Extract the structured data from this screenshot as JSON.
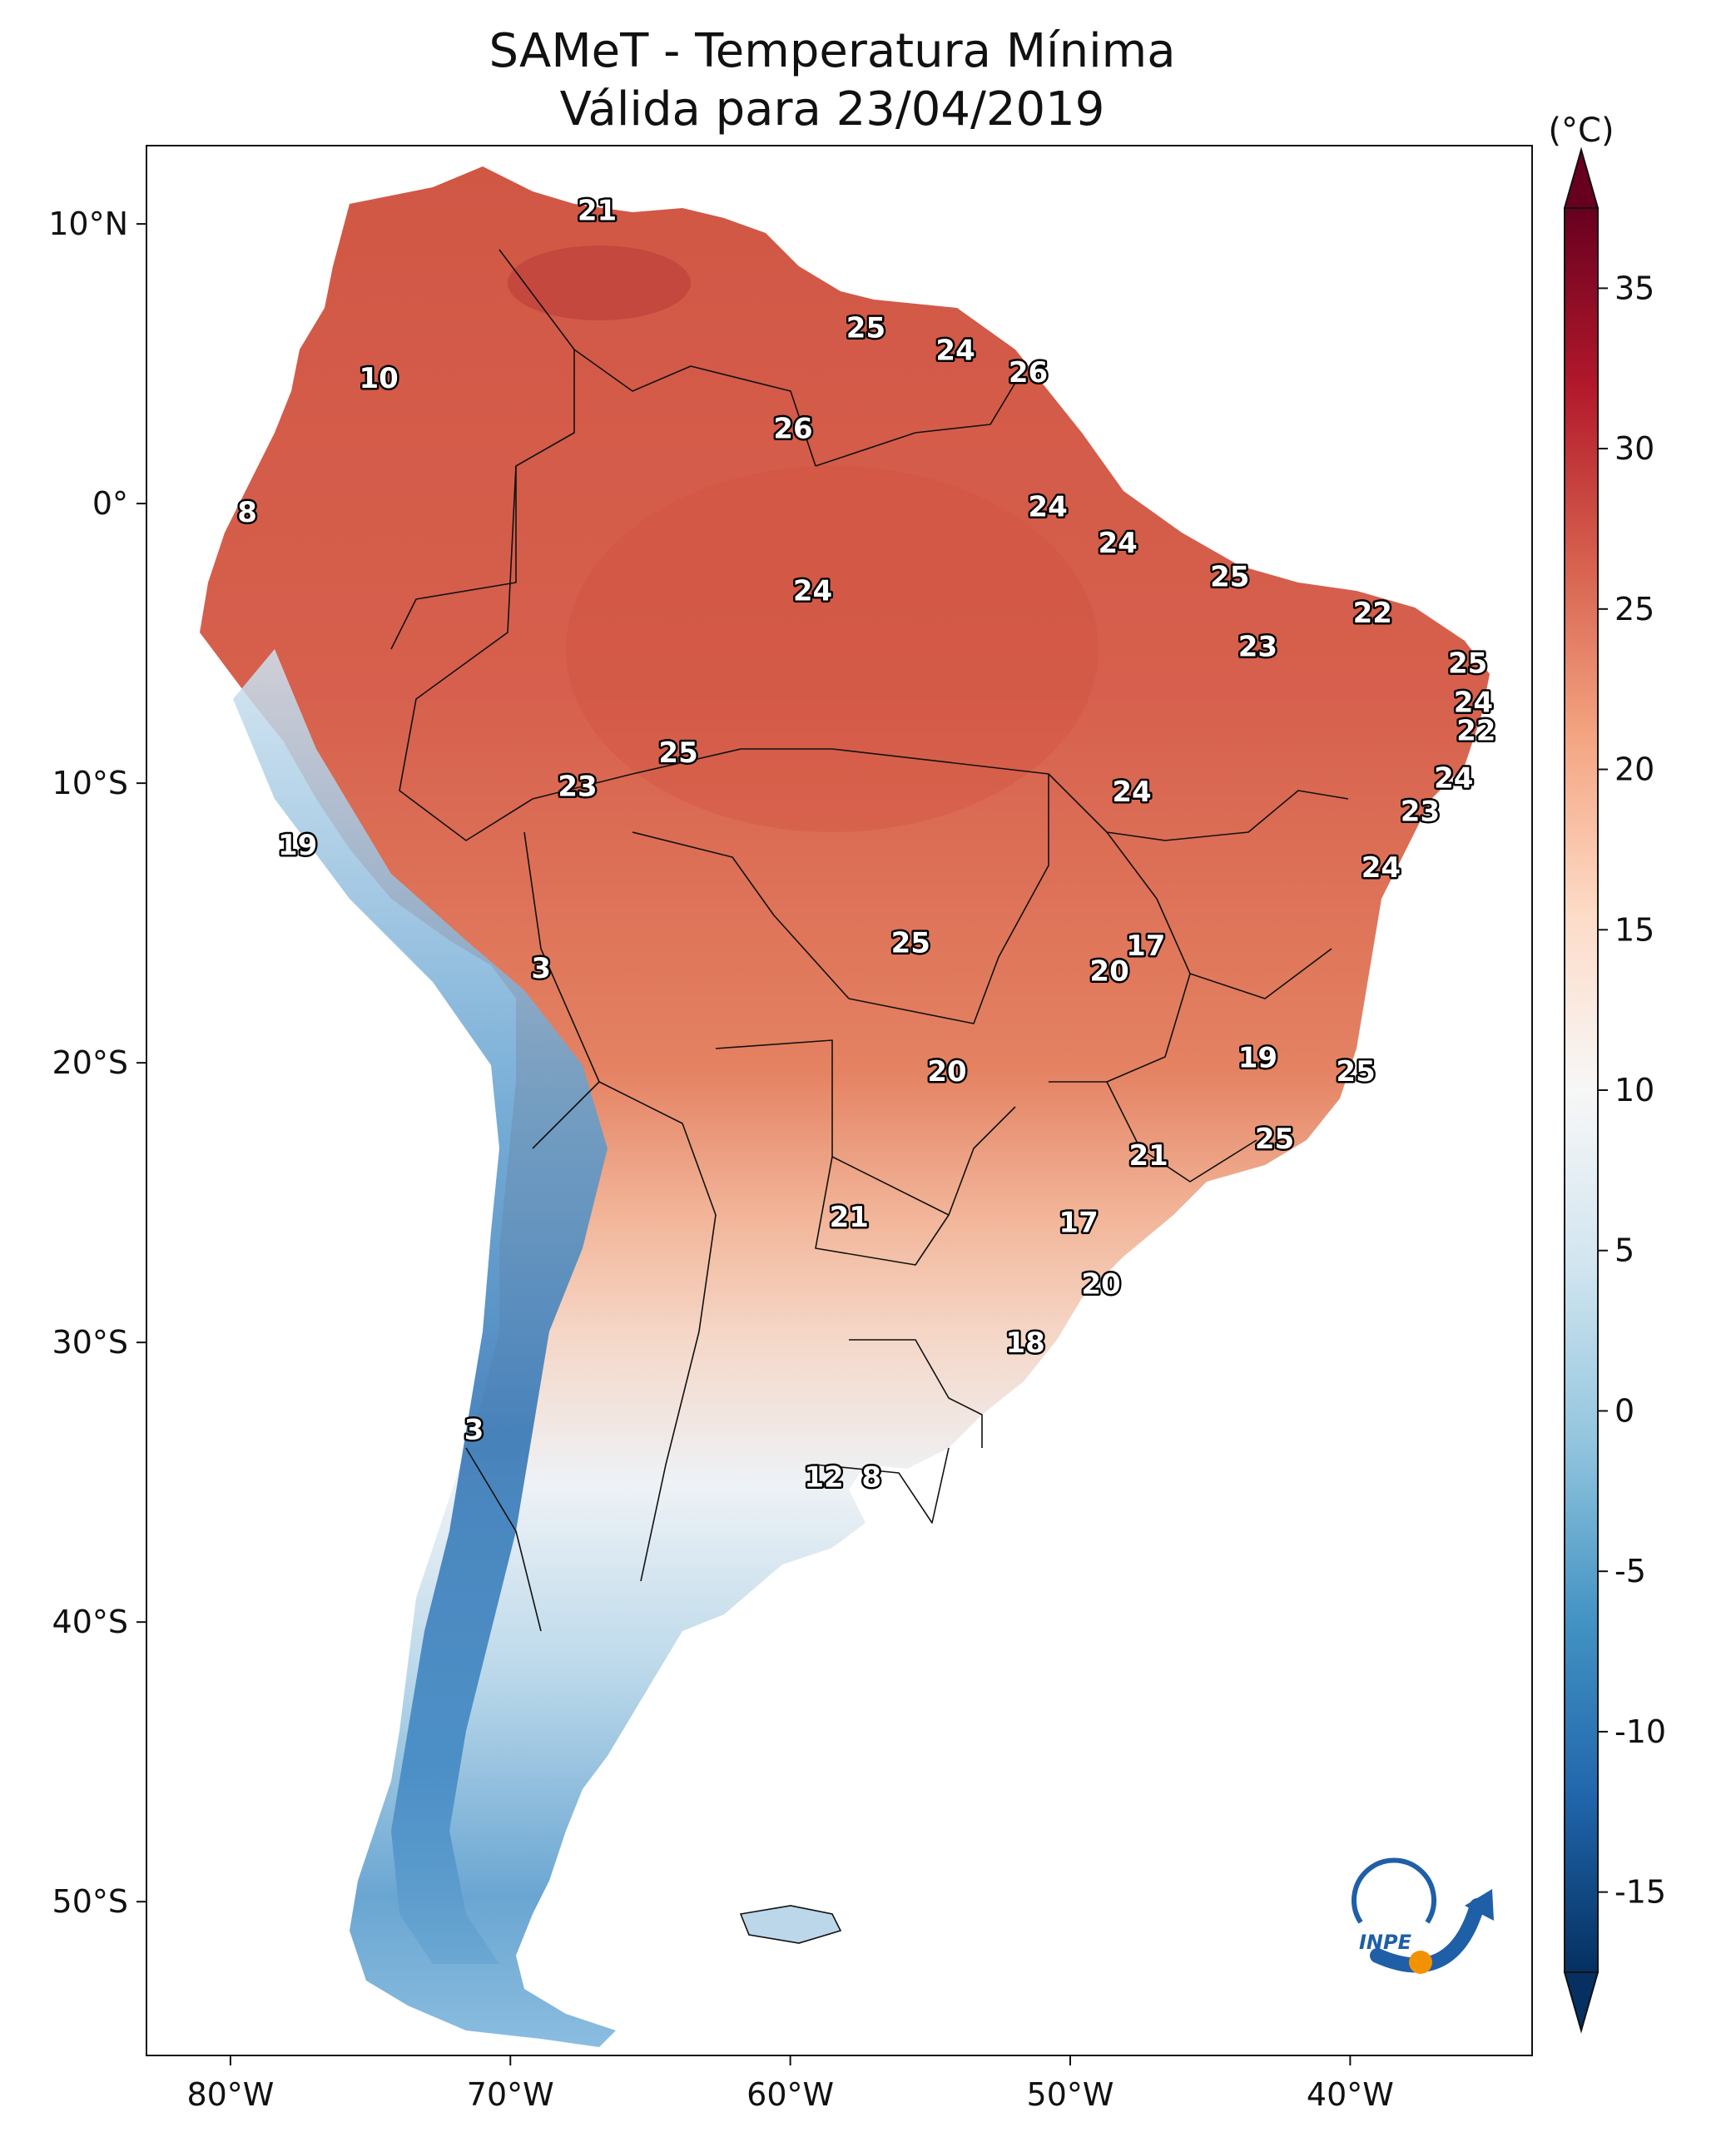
{
  "title": {
    "line1": "SAMeT - Temperatura Mínima",
    "line2": "Válida para 23/04/2019"
  },
  "map": {
    "lon_ticks": [
      "80°W",
      "70°W",
      "60°W",
      "50°W",
      "40°W"
    ],
    "lat_ticks": [
      "10°N",
      "0°",
      "10°S",
      "20°S",
      "30°S",
      "40°S",
      "50°S"
    ],
    "temperature_labels": [
      {
        "text": "21",
        "lon": -66.9,
        "lat": 10.5
      },
      {
        "text": "25",
        "lon": -57.3,
        "lat": 6.3
      },
      {
        "text": "24",
        "lon": -54.1,
        "lat": 5.5
      },
      {
        "text": "26",
        "lon": -51.5,
        "lat": 4.7
      },
      {
        "text": "10",
        "lon": -74.7,
        "lat": 4.5
      },
      {
        "text": "26",
        "lon": -59.9,
        "lat": 2.7
      },
      {
        "text": "8",
        "lon": -79.4,
        "lat": -0.3
      },
      {
        "text": "24",
        "lon": -50.8,
        "lat": -0.1
      },
      {
        "text": "24",
        "lon": -48.3,
        "lat": -1.4
      },
      {
        "text": "25",
        "lon": -44.3,
        "lat": -2.6
      },
      {
        "text": "24",
        "lon": -59.2,
        "lat": -3.1
      },
      {
        "text": "22",
        "lon": -39.2,
        "lat": -3.9
      },
      {
        "text": "23",
        "lon": -43.3,
        "lat": -5.1
      },
      {
        "text": "25",
        "lon": -35.8,
        "lat": -5.7
      },
      {
        "text": "24",
        "lon": -35.6,
        "lat": -7.1
      },
      {
        "text": "22",
        "lon": -35.5,
        "lat": -8.1
      },
      {
        "text": "25",
        "lon": -64.0,
        "lat": -8.9
      },
      {
        "text": "23",
        "lon": -67.6,
        "lat": -10.1
      },
      {
        "text": "24",
        "lon": -47.8,
        "lat": -10.3
      },
      {
        "text": "24",
        "lon": -36.3,
        "lat": -9.8
      },
      {
        "text": "23",
        "lon": -37.5,
        "lat": -11.0
      },
      {
        "text": "19",
        "lon": -77.6,
        "lat": -12.2
      },
      {
        "text": "24",
        "lon": -38.9,
        "lat": -13.0
      },
      {
        "text": "25",
        "lon": -55.7,
        "lat": -15.7
      },
      {
        "text": "17",
        "lon": -47.3,
        "lat": -15.8
      },
      {
        "text": "20",
        "lon": -48.6,
        "lat": -16.7
      },
      {
        "text": "3",
        "lon": -68.9,
        "lat": -16.6
      },
      {
        "text": "19",
        "lon": -43.3,
        "lat": -19.8
      },
      {
        "text": "20",
        "lon": -54.4,
        "lat": -20.3
      },
      {
        "text": "25",
        "lon": -39.8,
        "lat": -20.3
      },
      {
        "text": "25",
        "lon": -42.7,
        "lat": -22.7
      },
      {
        "text": "21",
        "lon": -47.2,
        "lat": -23.3
      },
      {
        "text": "21",
        "lon": -57.9,
        "lat": -25.5
      },
      {
        "text": "17",
        "lon": -49.7,
        "lat": -25.7
      },
      {
        "text": "20",
        "lon": -48.9,
        "lat": -27.9
      },
      {
        "text": "18",
        "lon": -51.6,
        "lat": -30.0
      },
      {
        "text": "3",
        "lon": -71.3,
        "lat": -33.1
      },
      {
        "text": "12",
        "lon": -58.8,
        "lat": -34.8
      },
      {
        "text": "8",
        "lon": -57.1,
        "lat": -34.8
      }
    ]
  },
  "colorbar": {
    "unit": "(°C)",
    "min": -17.5,
    "max": 37.5,
    "tick_values": [
      35,
      30,
      25,
      20,
      15,
      10,
      5,
      0,
      -5,
      -10,
      -15
    ],
    "tick_labels": [
      "35",
      "30",
      "25",
      "20",
      "15",
      "10",
      "5",
      "0",
      "-5",
      "-10",
      "-15"
    ],
    "colormap": [
      "#053061",
      "#2166ac",
      "#4393c3",
      "#92c5de",
      "#d1e5f0",
      "#f7f7f7",
      "#fddbc7",
      "#f4a582",
      "#d6604d",
      "#b2182b",
      "#67001f"
    ]
  },
  "logo": {
    "text": "INPE",
    "colors": {
      "blue": "#1f5fa8",
      "orange": "#f39200"
    }
  }
}
